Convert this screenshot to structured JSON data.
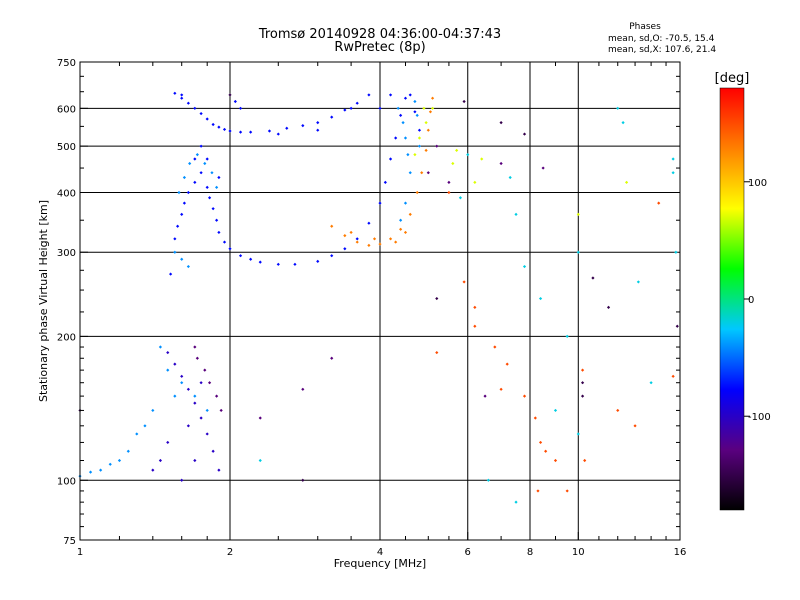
{
  "chart_data": {
    "type": "scatter",
    "title": "Tromsø 20140928 04:36:00-04:37:43",
    "subtitle": "RwPretec (8p)",
    "xlabel": "Frequency [MHz]",
    "ylabel": "Stationary phase Virtual Height [km]",
    "x_scale": "log",
    "y_scale": "log",
    "xlim": [
      1,
      16
    ],
    "ylim": [
      75,
      750
    ],
    "x_ticks": [
      1,
      2,
      4,
      6,
      8,
      10,
      16
    ],
    "y_ticks": [
      75,
      100,
      200,
      300,
      400,
      500,
      600,
      750
    ],
    "x_grid": [
      2,
      4,
      6,
      8,
      10
    ],
    "y_grid": [
      100,
      200,
      300,
      400,
      500,
      600
    ],
    "grid": true,
    "colorbar": {
      "label": "[deg]",
      "ticks": [
        100,
        0,
        -100
      ],
      "range": [
        -180,
        180
      ],
      "colors": [
        "#000000",
        "#5a0080",
        "#0000ff",
        "#00c8ff",
        "#00ff00",
        "#ffff00",
        "#ff8000",
        "#ff0000"
      ]
    },
    "legend_title": "Phases",
    "legend_lines": [
      "mean, sd,O: -70.5, 15.4",
      "mean, sd,X: 107.6, 21.4"
    ],
    "series": [
      {
        "color_value": -75,
        "points": [
          [
            1.55,
            645
          ],
          [
            1.6,
            630
          ],
          [
            1.65,
            615
          ],
          [
            1.7,
            600
          ],
          [
            1.75,
            585
          ],
          [
            1.8,
            570
          ],
          [
            1.85,
            555
          ],
          [
            1.9,
            548
          ],
          [
            1.95,
            542
          ],
          [
            2.0,
            538
          ],
          [
            2.1,
            535
          ],
          [
            2.2,
            535
          ],
          [
            2.4,
            538
          ],
          [
            2.6,
            545
          ],
          [
            2.8,
            552
          ],
          [
            3.0,
            560
          ],
          [
            3.2,
            575
          ],
          [
            3.4,
            595
          ],
          [
            3.6,
            615
          ],
          [
            3.8,
            640
          ],
          [
            1.55,
            320
          ],
          [
            1.57,
            340
          ],
          [
            1.6,
            360
          ],
          [
            1.62,
            380
          ],
          [
            1.65,
            400
          ],
          [
            1.7,
            420
          ],
          [
            1.75,
            440
          ],
          [
            1.8,
            410
          ],
          [
            1.82,
            390
          ],
          [
            1.85,
            370
          ],
          [
            1.88,
            350
          ],
          [
            1.9,
            330
          ],
          [
            1.95,
            315
          ],
          [
            2.0,
            305
          ],
          [
            2.1,
            295
          ],
          [
            2.2,
            290
          ],
          [
            2.3,
            286
          ],
          [
            2.5,
            283
          ],
          [
            2.7,
            283
          ],
          [
            3.0,
            287
          ],
          [
            3.2,
            295
          ],
          [
            3.4,
            305
          ],
          [
            3.6,
            320
          ],
          [
            3.8,
            345
          ],
          [
            4.0,
            380
          ],
          [
            4.1,
            420
          ],
          [
            4.2,
            470
          ],
          [
            4.3,
            520
          ],
          [
            4.4,
            580
          ],
          [
            4.5,
            630
          ],
          [
            1.52,
            270
          ],
          [
            1.6,
            640
          ],
          [
            1.7,
            470
          ],
          [
            1.75,
            500
          ],
          [
            1.8,
            470
          ],
          [
            1.9,
            430
          ],
          [
            2.05,
            620
          ],
          [
            2.1,
            600
          ],
          [
            2.5,
            530
          ],
          [
            3.0,
            540
          ],
          [
            3.5,
            600
          ],
          [
            4.6,
            640
          ],
          [
            4.7,
            590
          ],
          [
            4.8,
            540
          ],
          [
            4.0,
            600
          ],
          [
            4.2,
            640
          ]
        ]
      },
      {
        "color_value": -40,
        "points": [
          [
            1.58,
            400
          ],
          [
            1.62,
            430
          ],
          [
            1.66,
            460
          ],
          [
            1.72,
            480
          ],
          [
            1.78,
            460
          ],
          [
            1.84,
            440
          ],
          [
            1.88,
            410
          ],
          [
            4.35,
            600
          ],
          [
            4.45,
            560
          ],
          [
            4.5,
            520
          ],
          [
            4.55,
            480
          ],
          [
            4.6,
            440
          ],
          [
            4.5,
            380
          ],
          [
            4.4,
            350
          ],
          [
            4.7,
            620
          ],
          [
            4.75,
            580
          ],
          [
            4.8,
            500
          ],
          [
            1.55,
            300
          ],
          [
            1.6,
            290
          ],
          [
            1.65,
            280
          ],
          [
            1.45,
            190
          ],
          [
            1.5,
            170
          ],
          [
            1.55,
            150
          ],
          [
            1.4,
            140
          ],
          [
            1.35,
            130
          ],
          [
            1.3,
            125
          ],
          [
            1.25,
            115
          ],
          [
            1.2,
            110
          ],
          [
            1.15,
            108
          ],
          [
            1.1,
            105
          ],
          [
            1.05,
            104
          ],
          [
            1.0,
            102
          ],
          [
            1.6,
            160
          ],
          [
            1.7,
            150
          ],
          [
            1.8,
            140
          ]
        ]
      },
      {
        "color_value": -100,
        "points": [
          [
            1.5,
            185
          ],
          [
            1.55,
            175
          ],
          [
            1.6,
            165
          ],
          [
            1.65,
            155
          ],
          [
            1.7,
            145
          ],
          [
            1.75,
            135
          ],
          [
            1.8,
            125
          ],
          [
            1.85,
            115
          ],
          [
            1.9,
            105
          ],
          [
            1.5,
            120
          ],
          [
            1.45,
            110
          ],
          [
            1.4,
            105
          ],
          [
            1.6,
            100
          ],
          [
            1.7,
            110
          ],
          [
            1.65,
            130
          ],
          [
            1.75,
            160
          ]
        ]
      },
      {
        "color_value": -130,
        "points": [
          [
            1.72,
            180
          ],
          [
            1.78,
            170
          ],
          [
            1.82,
            160
          ],
          [
            1.88,
            150
          ],
          [
            1.92,
            140
          ],
          [
            1.7,
            190
          ],
          [
            2.3,
            135
          ],
          [
            3.2,
            180
          ],
          [
            2.8,
            155
          ],
          [
            5.2,
            500
          ],
          [
            5.0,
            440
          ],
          [
            5.5,
            420
          ],
          [
            6.5,
            150
          ],
          [
            7.0,
            460
          ],
          [
            8.5,
            450
          ]
        ]
      },
      {
        "color_value": 130,
        "points": [
          [
            3.2,
            340
          ],
          [
            3.4,
            325
          ],
          [
            3.6,
            315
          ],
          [
            3.8,
            310
          ],
          [
            4.0,
            312
          ],
          [
            4.2,
            320
          ],
          [
            4.4,
            335
          ],
          [
            4.6,
            360
          ],
          [
            4.75,
            400
          ],
          [
            4.85,
            440
          ],
          [
            4.95,
            490
          ],
          [
            5.0,
            540
          ],
          [
            5.05,
            590
          ],
          [
            5.1,
            630
          ],
          [
            4.5,
            330
          ],
          [
            4.3,
            315
          ],
          [
            3.5,
            330
          ],
          [
            3.9,
            320
          ]
        ]
      },
      {
        "color_value": 70,
        "points": [
          [
            4.9,
            600
          ],
          [
            4.95,
            560
          ],
          [
            4.8,
            520
          ],
          [
            4.7,
            480
          ],
          [
            5.1,
            600
          ],
          [
            5.6,
            460
          ],
          [
            5.7,
            490
          ],
          [
            6.2,
            420
          ],
          [
            6.4,
            470
          ],
          [
            10,
            360
          ],
          [
            12.5,
            420
          ]
        ]
      },
      {
        "color_value": 150,
        "points": [
          [
            5.2,
            185
          ],
          [
            5.5,
            400
          ],
          [
            5.9,
            260
          ],
          [
            6.2,
            210
          ],
          [
            6.2,
            230
          ],
          [
            6.8,
            190
          ],
          [
            7.2,
            175
          ],
          [
            7.8,
            150
          ],
          [
            8.2,
            135
          ],
          [
            8.4,
            120
          ],
          [
            8.6,
            115
          ],
          [
            9.0,
            110
          ],
          [
            9.5,
            95
          ],
          [
            10.2,
            170
          ],
          [
            10.3,
            110
          ],
          [
            12,
            140
          ],
          [
            13,
            130
          ],
          [
            15.5,
            165
          ],
          [
            8.3,
            95
          ],
          [
            7.0,
            155
          ],
          [
            14.5,
            380
          ]
        ]
      },
      {
        "color_value": -20,
        "points": [
          [
            6.0,
            480
          ],
          [
            5.8,
            390
          ],
          [
            7.3,
            430
          ],
          [
            7.5,
            360
          ],
          [
            7.8,
            280
          ],
          [
            8.4,
            240
          ],
          [
            9.5,
            200
          ],
          [
            10,
            300
          ],
          [
            12,
            600
          ],
          [
            12.3,
            560
          ],
          [
            13.2,
            260
          ],
          [
            15.5,
            470
          ],
          [
            15.5,
            440
          ],
          [
            15.7,
            300
          ],
          [
            9.0,
            140
          ],
          [
            2.3,
            110
          ],
          [
            6.6,
            100
          ],
          [
            7.5,
            90
          ],
          [
            10,
            125
          ],
          [
            14,
            160
          ]
        ]
      },
      {
        "color_value": -150,
        "points": [
          [
            2.0,
            640
          ],
          [
            5.9,
            620
          ],
          [
            7.0,
            560
          ],
          [
            7.8,
            530
          ],
          [
            10.2,
            150
          ],
          [
            10.2,
            160
          ],
          [
            10.7,
            265
          ],
          [
            11.5,
            230
          ],
          [
            15.8,
            210
          ],
          [
            1.0,
            140
          ],
          [
            2.8,
            100
          ],
          [
            5.2,
            240
          ]
        ]
      }
    ]
  }
}
